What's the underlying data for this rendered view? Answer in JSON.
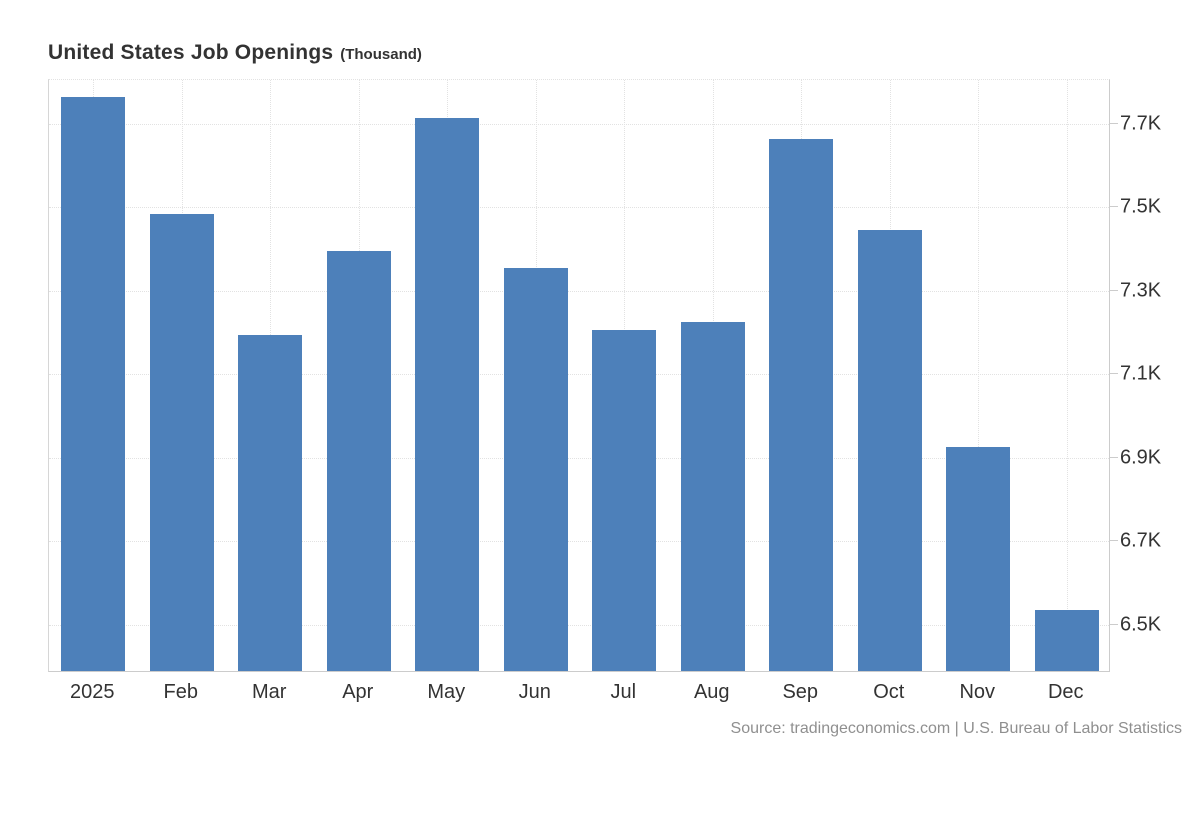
{
  "title": {
    "main": "United States Job Openings",
    "unit": "(Thousand)"
  },
  "source": "Source: tradingeconomics.com | U.S. Bureau of Labor Statistics",
  "colors": {
    "bar": "#4d80ba",
    "grid": "#e2e2e2",
    "axis": "#cccccc",
    "text": "#333333",
    "source_text": "#8f8f8f"
  },
  "chart_data": {
    "type": "bar",
    "title": "United States Job Openings (Thousand)",
    "categories": [
      "2025",
      "Feb",
      "Mar",
      "Apr",
      "May",
      "Jun",
      "Jul",
      "Aug",
      "Sep",
      "Oct",
      "Nov",
      "Dec"
    ],
    "values": [
      7760,
      7480,
      7190,
      7390,
      7710,
      7350,
      7200,
      7220,
      7660,
      7440,
      6920,
      6530
    ],
    "unit": "Thousand",
    "xlabel": "",
    "ylabel": "",
    "ylim": [
      6384,
      7805
    ],
    "y_ticks": [
      6500,
      6700,
      6900,
      7100,
      7300,
      7500,
      7700
    ],
    "y_tick_labels": [
      "6.5K",
      "6.7K",
      "6.9K",
      "7.1K",
      "7.3K",
      "7.5K",
      "7.7K"
    ],
    "grid": true,
    "legend": "none",
    "bar_color": "#4d80ba"
  }
}
